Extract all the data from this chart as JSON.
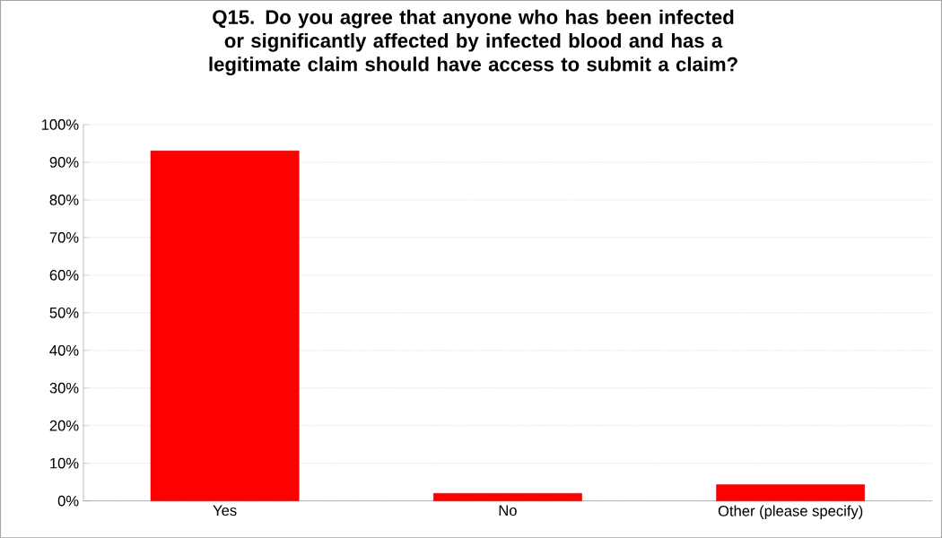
{
  "chart_data": {
    "type": "bar",
    "title": "Q15.  Do you agree that anyone who has been infected or significantly affected by infected blood and has a legitimate claim should have access to submit a claim?",
    "categories": [
      "Yes",
      "No",
      "Other (please specify)"
    ],
    "values": [
      93,
      2,
      4.3
    ],
    "color": "#ff0000",
    "ylim": [
      0,
      100
    ],
    "yticks": [
      {
        "value": 0,
        "label": "0%"
      },
      {
        "value": 10,
        "label": "10%"
      },
      {
        "value": 20,
        "label": "20%"
      },
      {
        "value": 30,
        "label": "30%"
      },
      {
        "value": 40,
        "label": "40%"
      },
      {
        "value": 50,
        "label": "50%"
      },
      {
        "value": 60,
        "label": "60%"
      },
      {
        "value": 70,
        "label": "70%"
      },
      {
        "value": 80,
        "label": "80%"
      },
      {
        "value": 90,
        "label": "90%"
      },
      {
        "value": 100,
        "label": "100%"
      }
    ],
    "grid": "y"
  }
}
